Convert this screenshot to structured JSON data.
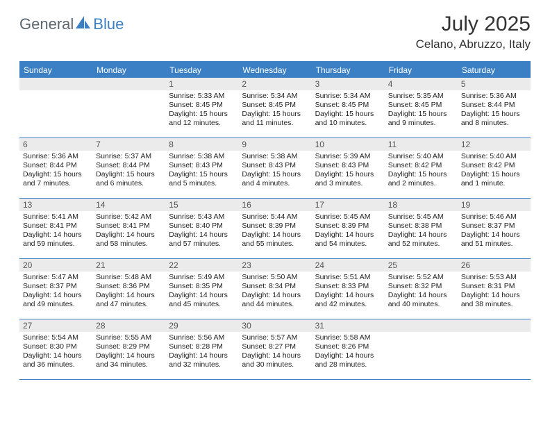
{
  "brand": {
    "part1": "General",
    "part2": "Blue"
  },
  "title": "July 2025",
  "location": "Celano, Abruzzo, Italy",
  "colors": {
    "accent": "#3b7fc4",
    "header_text": "#ffffff",
    "daynum_bg": "#ebebeb",
    "daynum_text": "#555555",
    "body_text": "#222222",
    "logo_gray": "#5c6670"
  },
  "dow": [
    "Sunday",
    "Monday",
    "Tuesday",
    "Wednesday",
    "Thursday",
    "Friday",
    "Saturday"
  ],
  "weeks": [
    [
      {
        "n": "",
        "lines": []
      },
      {
        "n": "",
        "lines": []
      },
      {
        "n": "1",
        "lines": [
          "Sunrise: 5:33 AM",
          "Sunset: 8:45 PM",
          "Daylight: 15 hours",
          "and 12 minutes."
        ]
      },
      {
        "n": "2",
        "lines": [
          "Sunrise: 5:34 AM",
          "Sunset: 8:45 PM",
          "Daylight: 15 hours",
          "and 11 minutes."
        ]
      },
      {
        "n": "3",
        "lines": [
          "Sunrise: 5:34 AM",
          "Sunset: 8:45 PM",
          "Daylight: 15 hours",
          "and 10 minutes."
        ]
      },
      {
        "n": "4",
        "lines": [
          "Sunrise: 5:35 AM",
          "Sunset: 8:45 PM",
          "Daylight: 15 hours",
          "and 9 minutes."
        ]
      },
      {
        "n": "5",
        "lines": [
          "Sunrise: 5:36 AM",
          "Sunset: 8:44 PM",
          "Daylight: 15 hours",
          "and 8 minutes."
        ]
      }
    ],
    [
      {
        "n": "6",
        "lines": [
          "Sunrise: 5:36 AM",
          "Sunset: 8:44 PM",
          "Daylight: 15 hours",
          "and 7 minutes."
        ]
      },
      {
        "n": "7",
        "lines": [
          "Sunrise: 5:37 AM",
          "Sunset: 8:44 PM",
          "Daylight: 15 hours",
          "and 6 minutes."
        ]
      },
      {
        "n": "8",
        "lines": [
          "Sunrise: 5:38 AM",
          "Sunset: 8:43 PM",
          "Daylight: 15 hours",
          "and 5 minutes."
        ]
      },
      {
        "n": "9",
        "lines": [
          "Sunrise: 5:38 AM",
          "Sunset: 8:43 PM",
          "Daylight: 15 hours",
          "and 4 minutes."
        ]
      },
      {
        "n": "10",
        "lines": [
          "Sunrise: 5:39 AM",
          "Sunset: 8:43 PM",
          "Daylight: 15 hours",
          "and 3 minutes."
        ]
      },
      {
        "n": "11",
        "lines": [
          "Sunrise: 5:40 AM",
          "Sunset: 8:42 PM",
          "Daylight: 15 hours",
          "and 2 minutes."
        ]
      },
      {
        "n": "12",
        "lines": [
          "Sunrise: 5:40 AM",
          "Sunset: 8:42 PM",
          "Daylight: 15 hours",
          "and 1 minute."
        ]
      }
    ],
    [
      {
        "n": "13",
        "lines": [
          "Sunrise: 5:41 AM",
          "Sunset: 8:41 PM",
          "Daylight: 14 hours",
          "and 59 minutes."
        ]
      },
      {
        "n": "14",
        "lines": [
          "Sunrise: 5:42 AM",
          "Sunset: 8:41 PM",
          "Daylight: 14 hours",
          "and 58 minutes."
        ]
      },
      {
        "n": "15",
        "lines": [
          "Sunrise: 5:43 AM",
          "Sunset: 8:40 PM",
          "Daylight: 14 hours",
          "and 57 minutes."
        ]
      },
      {
        "n": "16",
        "lines": [
          "Sunrise: 5:44 AM",
          "Sunset: 8:39 PM",
          "Daylight: 14 hours",
          "and 55 minutes."
        ]
      },
      {
        "n": "17",
        "lines": [
          "Sunrise: 5:45 AM",
          "Sunset: 8:39 PM",
          "Daylight: 14 hours",
          "and 54 minutes."
        ]
      },
      {
        "n": "18",
        "lines": [
          "Sunrise: 5:45 AM",
          "Sunset: 8:38 PM",
          "Daylight: 14 hours",
          "and 52 minutes."
        ]
      },
      {
        "n": "19",
        "lines": [
          "Sunrise: 5:46 AM",
          "Sunset: 8:37 PM",
          "Daylight: 14 hours",
          "and 51 minutes."
        ]
      }
    ],
    [
      {
        "n": "20",
        "lines": [
          "Sunrise: 5:47 AM",
          "Sunset: 8:37 PM",
          "Daylight: 14 hours",
          "and 49 minutes."
        ]
      },
      {
        "n": "21",
        "lines": [
          "Sunrise: 5:48 AM",
          "Sunset: 8:36 PM",
          "Daylight: 14 hours",
          "and 47 minutes."
        ]
      },
      {
        "n": "22",
        "lines": [
          "Sunrise: 5:49 AM",
          "Sunset: 8:35 PM",
          "Daylight: 14 hours",
          "and 45 minutes."
        ]
      },
      {
        "n": "23",
        "lines": [
          "Sunrise: 5:50 AM",
          "Sunset: 8:34 PM",
          "Daylight: 14 hours",
          "and 44 minutes."
        ]
      },
      {
        "n": "24",
        "lines": [
          "Sunrise: 5:51 AM",
          "Sunset: 8:33 PM",
          "Daylight: 14 hours",
          "and 42 minutes."
        ]
      },
      {
        "n": "25",
        "lines": [
          "Sunrise: 5:52 AM",
          "Sunset: 8:32 PM",
          "Daylight: 14 hours",
          "and 40 minutes."
        ]
      },
      {
        "n": "26",
        "lines": [
          "Sunrise: 5:53 AM",
          "Sunset: 8:31 PM",
          "Daylight: 14 hours",
          "and 38 minutes."
        ]
      }
    ],
    [
      {
        "n": "27",
        "lines": [
          "Sunrise: 5:54 AM",
          "Sunset: 8:30 PM",
          "Daylight: 14 hours",
          "and 36 minutes."
        ]
      },
      {
        "n": "28",
        "lines": [
          "Sunrise: 5:55 AM",
          "Sunset: 8:29 PM",
          "Daylight: 14 hours",
          "and 34 minutes."
        ]
      },
      {
        "n": "29",
        "lines": [
          "Sunrise: 5:56 AM",
          "Sunset: 8:28 PM",
          "Daylight: 14 hours",
          "and 32 minutes."
        ]
      },
      {
        "n": "30",
        "lines": [
          "Sunrise: 5:57 AM",
          "Sunset: 8:27 PM",
          "Daylight: 14 hours",
          "and 30 minutes."
        ]
      },
      {
        "n": "31",
        "lines": [
          "Sunrise: 5:58 AM",
          "Sunset: 8:26 PM",
          "Daylight: 14 hours",
          "and 28 minutes."
        ]
      },
      {
        "n": "",
        "lines": []
      },
      {
        "n": "",
        "lines": []
      }
    ]
  ]
}
